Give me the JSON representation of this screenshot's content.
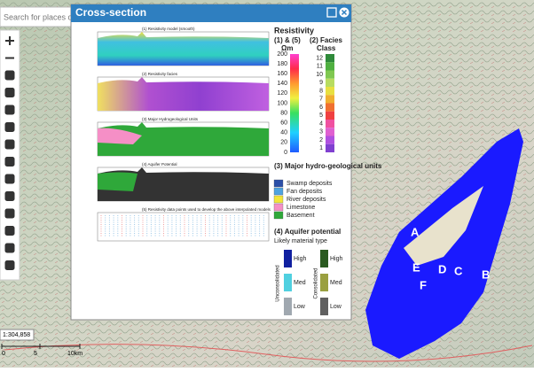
{
  "search": {
    "placeholder": "Search for places o"
  },
  "dialog": {
    "title": "Cross-section",
    "panels": [
      "(1) Resistivity model (smooth)",
      "(2) Resistivity facies",
      "(3) Major Hydrogeological Units",
      "(4) Aquifer Potential",
      "(5) Resistivity data points used to develop the above interpolated models"
    ],
    "legend": {
      "resistivity_title": "Resistivity",
      "res_header": "(1) & (5)",
      "res_unit": "Ωm",
      "facies_header": "(2) Facies",
      "facies_unit": "Class",
      "res_ticks": [
        200,
        180,
        160,
        140,
        120,
        100,
        80,
        60,
        40,
        20,
        0
      ],
      "facies_ticks": [
        12,
        11,
        10,
        9,
        8,
        7,
        6,
        5,
        4,
        3,
        2,
        1
      ],
      "units_title": "(3) Major hydro-geological units",
      "units": [
        {
          "label": "Swamp deposits",
          "color": "#2b4fa8"
        },
        {
          "label": "Fan deposits",
          "color": "#4fa3e0"
        },
        {
          "label": "River deposits",
          "color": "#f2e63a"
        },
        {
          "label": "Limestone",
          "color": "#f58fc6"
        },
        {
          "label": "Basement",
          "color": "#2fa83a"
        }
      ],
      "aquifer_title": "(4) Aquifer potential",
      "aquifer_subtitle": "Likely material type",
      "unconsolidated": "Unconsolidated",
      "consolidated": "Consolidated",
      "levels": [
        "High",
        "Med",
        "Low"
      ]
    }
  },
  "map": {
    "labels": [
      "A",
      "E",
      "D",
      "C",
      "B",
      "F"
    ],
    "scale": "1:304,858",
    "scale_ticks": [
      "0",
      "5",
      "10km"
    ]
  }
}
